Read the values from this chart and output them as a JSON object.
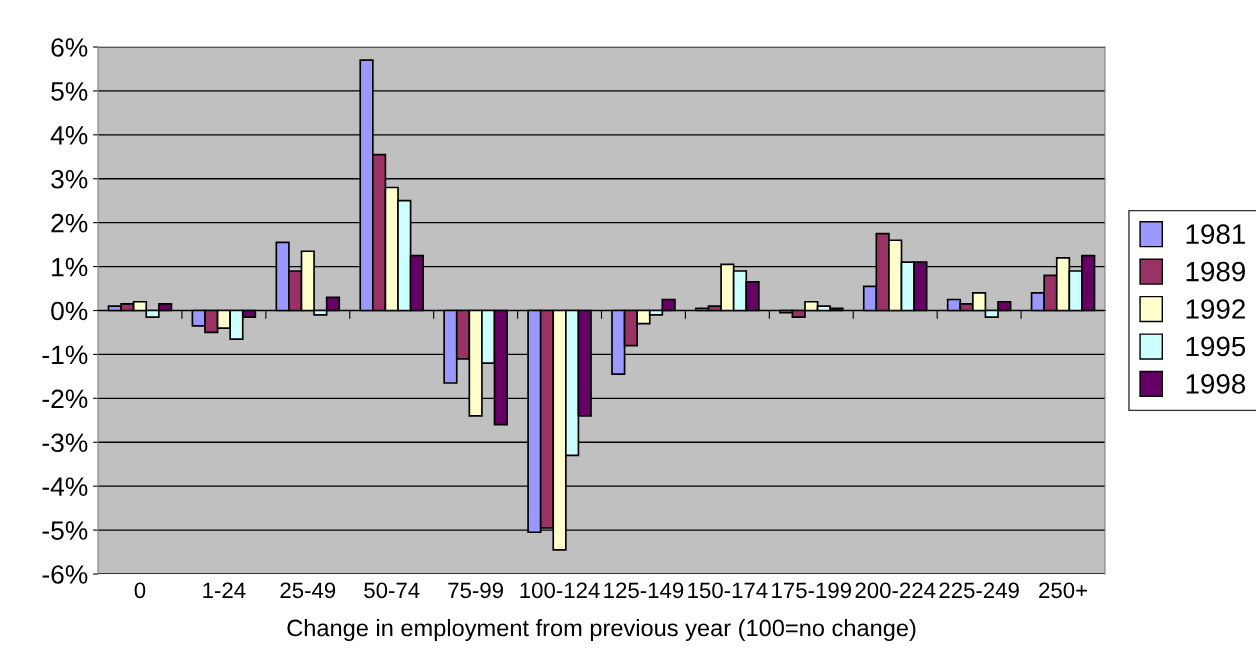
{
  "chart_data": {
    "type": "bar",
    "xlabel": "Change in employment from previous year (100=no change)",
    "categories": [
      "0",
      "1-24",
      "25-49",
      "50-74",
      "75-99",
      "100-124",
      "125-149",
      "150-174",
      "175-199",
      "200-224",
      "225-249",
      "250+"
    ],
    "series": [
      {
        "name": "1981",
        "color": "#9999ff",
        "values": [
          0.1,
          -0.35,
          1.55,
          5.7,
          -1.65,
          -5.05,
          -1.45,
          0.05,
          -0.05,
          0.55,
          0.25,
          0.4
        ]
      },
      {
        "name": "1989",
        "color": "#993366",
        "values": [
          0.15,
          -0.5,
          0.9,
          3.55,
          -1.1,
          -4.95,
          -0.8,
          0.1,
          -0.15,
          1.75,
          0.15,
          0.8
        ]
      },
      {
        "name": "1992",
        "color": "#ffffcc",
        "values": [
          0.2,
          -0.4,
          1.35,
          2.8,
          -2.4,
          -5.45,
          -0.3,
          1.05,
          0.2,
          1.6,
          0.4,
          1.2
        ]
      },
      {
        "name": "1995",
        "color": "#ccffff",
        "values": [
          -0.15,
          -0.65,
          -0.1,
          2.5,
          -1.2,
          -3.3,
          -0.1,
          0.9,
          0.1,
          1.1,
          -0.15,
          0.9
        ]
      },
      {
        "name": "1998",
        "color": "#660066",
        "values": [
          0.15,
          -0.15,
          0.3,
          1.25,
          -2.6,
          -2.4,
          0.25,
          0.65,
          0.05,
          1.1,
          0.2,
          1.25
        ]
      }
    ],
    "ylim": [
      -6,
      6
    ],
    "yticks": [
      {
        "value": 6,
        "label": "6%"
      },
      {
        "value": 5,
        "label": "5%"
      },
      {
        "value": 4,
        "label": "4%"
      },
      {
        "value": 3,
        "label": "3%"
      },
      {
        "value": 2,
        "label": "2%"
      },
      {
        "value": 1,
        "label": "1%"
      },
      {
        "value": 0,
        "label": "0%"
      },
      {
        "value": -1,
        "label": "-1%"
      },
      {
        "value": -2,
        "label": "-2%"
      },
      {
        "value": -3,
        "label": "-3%"
      },
      {
        "value": -4,
        "label": "-4%"
      },
      {
        "value": -5,
        "label": "-5%"
      },
      {
        "value": -6,
        "label": "-6%"
      }
    ],
    "grid": "y",
    "legend": "right"
  }
}
